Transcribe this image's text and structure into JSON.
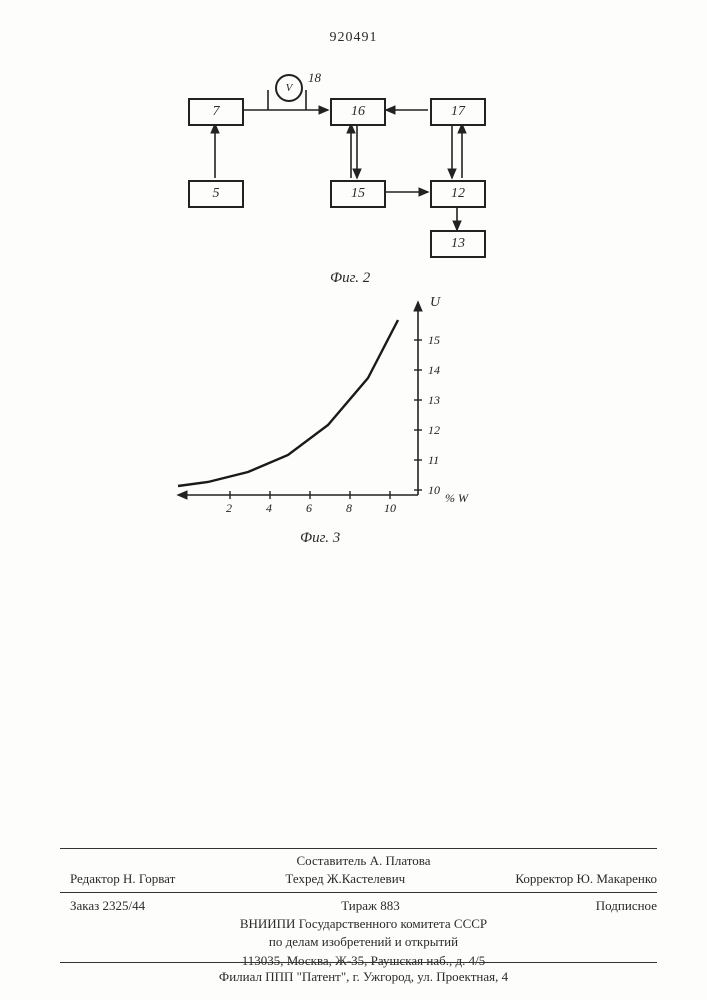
{
  "doc_number": "920491",
  "fig2": {
    "caption": "Фиг. 2",
    "meter": {
      "symbol": "V",
      "label": "18"
    },
    "blocks": {
      "b7": {
        "label": "7"
      },
      "b16": {
        "label": "16"
      },
      "b17": {
        "label": "17"
      },
      "b5": {
        "label": "5"
      },
      "b15": {
        "label": "15"
      },
      "b12": {
        "label": "12"
      },
      "b13": {
        "label": "13"
      }
    }
  },
  "fig3": {
    "caption": "Фиг. 3",
    "y_label": "U",
    "y_ticks": [
      "15",
      "14",
      "13",
      "12",
      "11",
      "10"
    ],
    "x_ticks": [
      "2",
      "4",
      "6",
      "8",
      "10"
    ],
    "x_unit": "% W",
    "curve_points": [
      [
        20,
        30
      ],
      [
        50,
        88
      ],
      [
        90,
        135
      ],
      [
        130,
        165
      ],
      [
        170,
        182
      ],
      [
        210,
        192
      ],
      [
        240,
        196
      ]
    ],
    "axis_color": "#222",
    "curve_color": "#1a1a1a",
    "curve_width": 2.4,
    "background": "#fdfdfb"
  },
  "credits": {
    "line1_left": "Редактор Н. Горват",
    "line1_mid_a": "Составитель А. Платова",
    "line1_mid_b": "Техред Ж.Кастелевич",
    "line1_right": "Корректор Ю. Макаренко",
    "line2_left": "Заказ 2325/44",
    "line2_mid": "Тираж 883",
    "line2_right": "Подписное",
    "line3": "ВНИИПИ Государственного комитета СССР",
    "line4": "по делам изобретений и открытий",
    "line5": "113035, Москва, Ж-35, Раушская наб., д. 4/5",
    "line6": "Филиал ППП \"Патент\", г. Ужгород, ул. Проектная, 4"
  }
}
